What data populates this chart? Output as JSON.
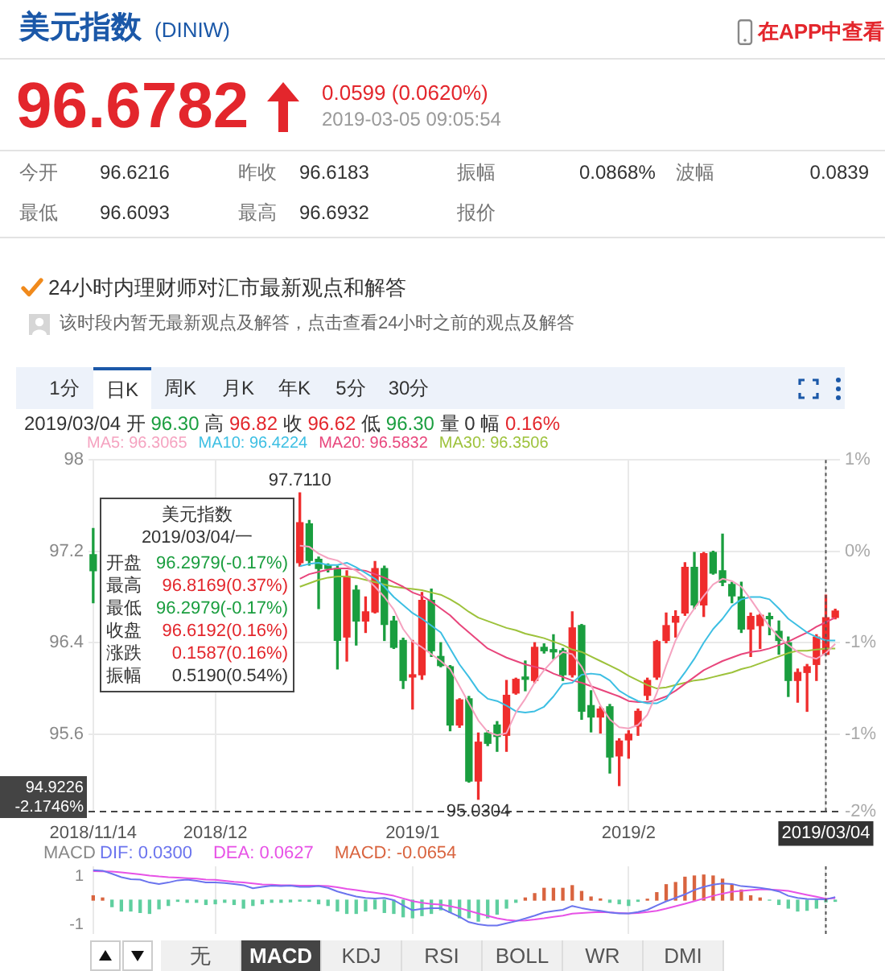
{
  "chart_data": [
    {
      "type": "other",
      "title": "美元指数",
      "subtitle": "(DINIW)",
      "annotations": [
        "96.6782",
        "0.0599 (0.0620%)",
        "2019-03-05 09:05:54",
        "在APP中查看",
        "今开",
        "96.6216",
        "昨收",
        "96.6183",
        "振幅",
        "0.0868%",
        "波幅",
        "0.0839",
        "最低",
        "96.6093",
        "最高",
        "96.6932",
        "报价",
        "24小时内理财师对汇市最新观点和解答",
        "该时段内暂无最新观点及解答，点击查看24小时之前的观点及解答"
      ]
    },
    {
      "type": "candlestick",
      "categories": [
        "2018/11/14",
        null,
        null,
        null,
        null,
        null,
        null,
        null,
        null,
        null,
        null,
        null,
        null,
        "2018/12",
        null,
        null,
        null,
        null,
        null,
        null,
        null,
        null,
        null,
        null,
        null,
        null,
        null,
        null,
        null,
        null,
        null,
        null,
        null,
        null,
        "2019/1",
        null,
        null,
        null,
        null,
        null,
        null,
        null,
        null,
        null,
        null,
        null,
        null,
        null,
        null,
        null,
        null,
        null,
        null,
        null,
        null,
        null,
        null,
        "2019/2",
        null,
        null,
        null,
        null,
        null,
        null,
        null,
        null,
        null,
        null,
        null,
        null,
        null,
        null,
        null,
        null,
        null,
        null,
        null,
        null,
        "2019/03/04",
        null
      ],
      "ohlc": [
        [
          97.17,
          97.4,
          96.75,
          97.03
        ],
        null,
        null,
        null,
        null,
        null,
        null,
        null,
        null,
        null,
        null,
        null,
        null,
        null,
        null,
        null,
        null,
        null,
        null,
        null,
        null,
        null,
        [
          97.1,
          97.711,
          97.07,
          97.45
        ],
        [
          97.44,
          97.47,
          97.08,
          97.12
        ],
        [
          97.13,
          97.15,
          96.7,
          97.05
        ],
        [
          97.08,
          97.09,
          97.02,
          97.05
        ],
        [
          97.05,
          97.07,
          96.17,
          96.42
        ],
        [
          96.45,
          97.03,
          96.24,
          96.98
        ],
        [
          96.86,
          96.9,
          96.38,
          96.59
        ],
        [
          96.59,
          96.8,
          96.49,
          96.67
        ],
        [
          96.67,
          97.11,
          96.66,
          97.05
        ],
        [
          97.05,
          97.07,
          96.42,
          96.56
        ],
        [
          96.59,
          96.63,
          96.35,
          96.36
        ],
        [
          96.42,
          96.44,
          96.0,
          96.07
        ],
        [
          96.1,
          96.42,
          95.82,
          96.12
        ],
        [
          96.12,
          96.84,
          96.08,
          96.77
        ],
        [
          96.77,
          96.87,
          96.28,
          96.33
        ],
        [
          96.28,
          96.4,
          96.19,
          96.2
        ],
        [
          96.19,
          96.2,
          95.63,
          95.68
        ],
        [
          95.68,
          95.91,
          95.66,
          95.9
        ],
        [
          95.91,
          95.93,
          95.18,
          95.19
        ],
        [
          95.19,
          95.61,
          95.0304,
          95.53
        ],
        [
          95.61,
          95.63,
          95.5,
          95.52
        ],
        [
          95.68,
          95.71,
          95.45,
          95.58
        ],
        [
          95.59,
          96.07,
          95.45,
          95.94
        ],
        [
          95.96,
          96.09,
          95.95,
          96.08
        ],
        [
          96.1,
          96.24,
          95.98,
          96.08
        ],
        [
          96.07,
          96.4,
          96.05,
          96.36
        ],
        [
          96.36,
          96.39,
          96.31,
          96.33
        ],
        [
          96.34,
          96.47,
          96.26,
          96.32
        ],
        [
          96.33,
          96.35,
          96.07,
          96.12
        ],
        [
          96.12,
          96.67,
          96.1,
          96.53
        ],
        [
          96.55,
          96.56,
          95.73,
          95.8
        ],
        [
          95.85,
          95.98,
          95.62,
          95.75
        ],
        [
          95.75,
          95.84,
          95.61,
          95.82
        ],
        [
          95.84,
          95.86,
          95.26,
          95.4
        ],
        [
          95.41,
          95.56,
          95.15,
          95.54
        ],
        [
          95.55,
          95.63,
          95.39,
          95.6
        ],
        [
          95.67,
          95.82,
          95.59,
          95.8
        ],
        [
          95.94,
          96.09,
          95.9,
          96.07
        ],
        [
          96.1,
          96.42,
          96.08,
          96.41
        ],
        [
          96.42,
          96.66,
          96.4,
          96.55
        ],
        [
          96.58,
          96.68,
          96.45,
          96.63
        ],
        [
          96.66,
          97.1,
          96.64,
          97.06
        ],
        [
          97.06,
          97.19,
          96.7,
          96.73
        ],
        [
          96.73,
          97.19,
          96.63,
          97.18
        ],
        [
          97.19,
          97.2,
          97.0,
          97.01
        ],
        [
          97.03,
          97.35,
          96.9,
          96.93
        ],
        [
          96.91,
          96.93,
          96.75,
          96.81
        ],
        [
          96.8,
          96.93,
          96.49,
          96.52
        ],
        [
          96.52,
          96.66,
          96.28,
          96.63
        ],
        [
          96.55,
          96.65,
          96.35,
          96.64
        ],
        [
          96.63,
          96.66,
          96.47,
          96.61
        ],
        [
          96.5,
          96.59,
          96.3,
          96.42
        ],
        [
          96.4,
          96.45,
          95.93,
          96.07
        ],
        [
          96.07,
          96.17,
          95.88,
          96.14
        ],
        [
          96.14,
          96.21,
          95.8,
          96.19
        ],
        [
          96.21,
          96.47,
          96.07,
          96.45
        ],
        [
          96.2979,
          96.8169,
          96.2979,
          96.6192
        ],
        [
          96.6216,
          96.6932,
          96.6093,
          96.6782
        ]
      ],
      "colors": [
        "#1a9e3f",
        null,
        null,
        null,
        null,
        null,
        null,
        null,
        null,
        null,
        null,
        null,
        null,
        null,
        null,
        null,
        null,
        null,
        null,
        null,
        null,
        null,
        "#ef2d2d",
        "#1a9e3f",
        "#1a9e3f",
        "#1a9e3f",
        "#1a9e3f",
        "#ef2d2d",
        "#1a9e3f",
        "#ef2d2d",
        "#ef2d2d",
        "#1a9e3f",
        "#1a9e3f",
        "#1a9e3f",
        "#ef2d2d",
        "#ef2d2d",
        "#1a9e3f",
        "#1a9e3f",
        "#1a9e3f",
        "#ef2d2d",
        "#1a9e3f",
        "#ef2d2d",
        "#1a9e3f",
        "#1a9e3f",
        "#ef2d2d",
        "#ef2d2d",
        "#1a9e3f",
        "#ef2d2d",
        "#1a9e3f",
        "#1a9e3f",
        "#1a9e3f",
        "#ef2d2d",
        "#1a9e3f",
        "#1a9e3f",
        "#ef2d2d",
        "#1a9e3f",
        "#ef2d2d",
        "#ef2d2d",
        "#ef2d2d",
        "#ef2d2d",
        "#ef2d2d",
        "#ef2d2d",
        "#ef2d2d",
        "#ef2d2d",
        "#1a9e3f",
        "#ef2d2d",
        "#1a9e3f",
        "#1a9e3f",
        "#1a9e3f",
        "#1a9e3f",
        "#ef2d2d",
        "#ef2d2d",
        "#1a9e3f",
        "#1a9e3f",
        "#1a9e3f",
        "#ef2d2d",
        "#ef2d2d",
        "#ef2d2d",
        "#ef2d2d",
        "#ef2d2d"
      ],
      "series": [
        {
          "name": "MA5: 96.3065",
          "type": "line",
          "color": "#f5a3c0",
          "values": [
            null,
            null,
            null,
            null,
            null,
            null,
            null,
            null,
            null,
            null,
            null,
            null,
            null,
            null,
            null,
            null,
            null,
            null,
            null,
            null,
            null,
            null,
            97.25,
            97.24,
            97.18,
            97.14,
            97.12,
            97.07,
            97.03,
            96.97,
            96.89,
            96.8,
            96.69,
            96.52,
            96.41,
            96.36,
            96.3,
            96.24,
            96.17,
            96.02,
            95.87,
            95.72,
            95.62,
            95.59,
            95.61,
            95.79,
            95.91,
            96.05,
            96.16,
            96.25,
            96.32,
            96.3,
            96.19,
            96.03,
            95.85,
            95.73,
            95.66,
            95.65,
            95.68,
            95.77,
            95.96,
            96.2,
            96.42,
            96.58,
            96.7,
            96.81,
            96.91,
            96.96,
            96.94,
            96.89,
            96.78,
            96.66,
            96.54,
            96.45,
            96.38,
            96.32,
            96.28,
            96.26,
            96.31,
            96.39
          ]
        },
        {
          "name": "MA10: 96.4224",
          "type": "line",
          "color": "#3dbfe3",
          "values": [
            null,
            null,
            null,
            null,
            null,
            null,
            null,
            null,
            null,
            null,
            null,
            null,
            null,
            null,
            null,
            null,
            null,
            null,
            null,
            null,
            null,
            null,
            97.07,
            97.09,
            97.1,
            97.08,
            97.08,
            97.1,
            97.06,
            97.01,
            96.96,
            96.89,
            96.8,
            96.73,
            96.66,
            96.61,
            96.55,
            96.49,
            96.35,
            96.21,
            96.1,
            95.98,
            95.91,
            95.89,
            95.85,
            95.8,
            95.79,
            95.8,
            95.84,
            95.93,
            96.04,
            96.05,
            96.12,
            96.13,
            96.12,
            96.07,
            95.98,
            95.93,
            95.89,
            95.87,
            95.87,
            95.91,
            96.03,
            96.14,
            96.26,
            96.4,
            96.52,
            96.61,
            96.72,
            96.78,
            96.8,
            96.8,
            96.78,
            96.7,
            96.61,
            96.55,
            96.49,
            96.45,
            96.42,
            96.42
          ]
        },
        {
          "name": "MA20: 96.5832",
          "type": "line",
          "color": "#e8467c",
          "values": [
            null,
            null,
            null,
            null,
            null,
            null,
            null,
            null,
            null,
            null,
            null,
            null,
            null,
            null,
            null,
            null,
            null,
            null,
            null,
            null,
            null,
            null,
            96.96,
            97.0,
            97.02,
            97.04,
            97.05,
            97.05,
            97.04,
            97.03,
            97.0,
            96.97,
            96.93,
            96.89,
            96.84,
            96.81,
            96.76,
            96.7,
            96.64,
            96.56,
            96.49,
            96.42,
            96.35,
            96.31,
            96.27,
            96.24,
            96.21,
            96.19,
            96.17,
            96.13,
            96.1,
            96.07,
            96.05,
            96.02,
            95.99,
            95.96,
            95.93,
            95.89,
            95.88,
            95.88,
            95.9,
            95.93,
            95.98,
            96.04,
            96.1,
            96.16,
            96.2,
            96.24,
            96.27,
            96.3,
            96.32,
            96.33,
            96.35,
            96.38,
            96.41,
            96.45,
            96.49,
            96.54,
            96.58,
            96.62
          ]
        },
        {
          "name": "MA30: 96.3506",
          "type": "line",
          "color": "#9dc23b",
          "values": [
            null,
            null,
            null,
            null,
            null,
            null,
            null,
            null,
            null,
            null,
            null,
            null,
            null,
            null,
            null,
            null,
            null,
            null,
            null,
            null,
            null,
            null,
            96.89,
            96.92,
            96.95,
            96.97,
            96.98,
            96.98,
            96.97,
            96.95,
            96.93,
            96.91,
            96.89,
            96.88,
            96.87,
            96.86,
            96.84,
            96.82,
            96.78,
            96.73,
            96.67,
            96.62,
            96.59,
            96.56,
            96.53,
            96.51,
            96.48,
            96.46,
            96.44,
            96.41,
            96.38,
            96.34,
            96.32,
            96.28,
            96.24,
            96.2,
            96.16,
            96.11,
            96.07,
            96.03,
            96.0,
            96.01,
            96.03,
            96.05,
            96.07,
            96.08,
            96.1,
            96.12,
            96.14,
            96.17,
            96.19,
            96.22,
            96.25,
            96.28,
            96.31,
            96.33,
            96.33,
            96.34,
            96.35,
            96.35
          ]
        }
      ],
      "ylim": [
        94.9226,
        98
      ],
      "yticks": [
        95.6,
        96.4,
        97.2,
        98
      ],
      "y2lim": [
        -2.1746,
        0.9968
      ],
      "y2ticks": [
        {
          "value": -2.1746,
          "label": "-2%"
        },
        {
          "value": -1.4767,
          "label": "-1%"
        },
        {
          "value": -0.6522,
          "label": "-1%"
        },
        {
          "value": 0.1723,
          "label": "0%"
        },
        {
          "value": 0.9968,
          "label": "1%"
        }
      ],
      "grid": true,
      "legend": "top",
      "marker": "none",
      "ref_lines": [
        {
          "axis": "y",
          "value": 94.9226,
          "label": "94.9226 -2.1746%",
          "line_style": "dashed",
          "color": "#444444"
        },
        {
          "axis": "x",
          "value": "2019/03/04",
          "line_style": "dotted",
          "color": "#555555"
        }
      ],
      "annotations": [
        "1分",
        "日K",
        "周K",
        "月K",
        "年K",
        "5分",
        "30分",
        "2019/03/04 开 96.30 高 96.82 收 96.62 低 96.30 量 0 幅 0.16%",
        "美元指数",
        "2019/03/04/一",
        "开盘 96.2979(-0.17%)",
        "最高 96.8169(0.37%)",
        "最低 96.2979(-0.17%)",
        "收盘 96.6192(0.16%)",
        "涨跌 0.1587(0.16%)",
        "振幅 0.5190(0.54%)",
        {
          "text": "97.7110",
          "y": 97.711
        },
        {
          "text": "95.0304",
          "y": 95.0304
        }
      ]
    },
    {
      "type": "bar",
      "title": "MACD",
      "categories": [
        "2018/11/14",
        null,
        null,
        null,
        null,
        null,
        null,
        null,
        null,
        null,
        null,
        null,
        null,
        "2018/12",
        null,
        null,
        null,
        null,
        null,
        null,
        null,
        null,
        null,
        null,
        null,
        null,
        null,
        null,
        null,
        null,
        null,
        null,
        null,
        null,
        "2019/1",
        null,
        null,
        null,
        null,
        null,
        null,
        null,
        null,
        null,
        null,
        null,
        null,
        null,
        null,
        null,
        null,
        null,
        null,
        null,
        null,
        null,
        null,
        "2019/2",
        null,
        null,
        null,
        null,
        null,
        null,
        null,
        null,
        null,
        null,
        null,
        null,
        null,
        null,
        null,
        null,
        null,
        null,
        null,
        null,
        "2019/03/04",
        null
      ],
      "series": [
        {
          "name": "DIF: 0.0300",
          "type": "line",
          "color": "#6b74ee",
          "values": [
            1.24,
            1.22,
            1.09,
            0.95,
            0.87,
            0.85,
            0.73,
            0.67,
            0.73,
            0.82,
            0.85,
            0.8,
            0.73,
            0.73,
            0.71,
            0.67,
            0.62,
            0.49,
            0.55,
            0.6,
            0.58,
            0.6,
            0.55,
            0.55,
            0.58,
            0.51,
            0.36,
            0.25,
            0.15,
            0.09,
            0.07,
            0.09,
            0.0,
            -0.22,
            -0.42,
            -0.36,
            -0.33,
            -0.33,
            -0.51,
            -0.69,
            -0.91,
            -1.0,
            -1.05,
            -1.05,
            -0.96,
            -0.87,
            -0.76,
            -0.64,
            -0.51,
            -0.45,
            -0.4,
            -0.24,
            -0.33,
            -0.4,
            -0.44,
            -0.51,
            -0.55,
            -0.55,
            -0.49,
            -0.4,
            -0.22,
            -0.05,
            0.09,
            0.24,
            0.42,
            0.55,
            0.64,
            0.69,
            0.67,
            0.58,
            0.55,
            0.51,
            0.45,
            0.36,
            0.18,
            0.09,
            0.05,
            0.04,
            0.03,
            0.13
          ]
        },
        {
          "name": "DEA: 0.0627",
          "type": "line",
          "color": "#e752e6",
          "values": [
            1.2,
            1.19,
            1.18,
            1.15,
            1.11,
            1.07,
            1.02,
            0.98,
            0.95,
            0.93,
            0.91,
            0.89,
            0.85,
            0.84,
            0.8,
            0.76,
            0.73,
            0.69,
            0.65,
            0.64,
            0.62,
            0.62,
            0.6,
            0.6,
            0.6,
            0.58,
            0.53,
            0.47,
            0.42,
            0.36,
            0.31,
            0.25,
            0.18,
            0.07,
            -0.04,
            -0.11,
            -0.16,
            -0.18,
            -0.25,
            -0.33,
            -0.44,
            -0.55,
            -0.65,
            -0.75,
            -0.82,
            -0.85,
            -0.84,
            -0.8,
            -0.75,
            -0.69,
            -0.64,
            -0.56,
            -0.53,
            -0.51,
            -0.49,
            -0.51,
            -0.53,
            -0.55,
            -0.53,
            -0.49,
            -0.44,
            -0.35,
            -0.25,
            -0.15,
            -0.04,
            0.07,
            0.18,
            0.27,
            0.35,
            0.38,
            0.42,
            0.44,
            0.44,
            0.42,
            0.38,
            0.3,
            0.22,
            0.14,
            0.06,
            0.08
          ]
        },
        {
          "name": "MACD: -0.0654",
          "color": "#d9643f",
          "values": [
            0.18,
            0.09,
            -0.27,
            -0.45,
            -0.45,
            -0.51,
            -0.55,
            -0.36,
            -0.22,
            -0.05,
            -0.09,
            -0.09,
            -0.18,
            -0.15,
            -0.09,
            -0.18,
            -0.33,
            -0.22,
            -0.15,
            -0.09,
            -0.09,
            -0.07,
            -0.04,
            -0.05,
            -0.15,
            -0.22,
            -0.45,
            -0.55,
            -0.55,
            -0.45,
            -0.36,
            -0.51,
            -0.55,
            -0.69,
            -0.73,
            -0.64,
            -0.55,
            -0.4,
            -0.51,
            -0.73,
            -0.73,
            -0.87,
            -0.73,
            -0.58,
            -0.33,
            -0.09,
            0.09,
            0.27,
            0.49,
            0.49,
            0.49,
            0.6,
            0.36,
            0.13,
            0.05,
            -0.09,
            -0.15,
            -0.22,
            -0.05,
            0.04,
            0.31,
            0.64,
            0.73,
            0.95,
            1.0,
            1.04,
            1.0,
            0.87,
            0.64,
            0.42,
            0.18,
            0.09,
            0,
            -0.18,
            -0.33,
            -0.45,
            -0.42,
            -0.33,
            -0.07,
            -0.05
          ],
          "colors": [
            "#d9643f",
            "#d9643f",
            "#5fcf9f",
            "#5fcf9f",
            "#5fcf9f",
            "#5fcf9f",
            "#5fcf9f",
            "#5fcf9f",
            "#5fcf9f",
            "#5fcf9f",
            "#5fcf9f",
            "#5fcf9f",
            "#5fcf9f",
            "#5fcf9f",
            "#5fcf9f",
            "#5fcf9f",
            "#5fcf9f",
            "#5fcf9f",
            "#5fcf9f",
            "#5fcf9f",
            "#5fcf9f",
            "#5fcf9f",
            "#5fcf9f",
            "#5fcf9f",
            "#5fcf9f",
            "#5fcf9f",
            "#5fcf9f",
            "#5fcf9f",
            "#5fcf9f",
            "#5fcf9f",
            "#5fcf9f",
            "#5fcf9f",
            "#5fcf9f",
            "#5fcf9f",
            "#5fcf9f",
            "#5fcf9f",
            "#5fcf9f",
            "#5fcf9f",
            "#5fcf9f",
            "#5fcf9f",
            "#5fcf9f",
            "#5fcf9f",
            "#5fcf9f",
            "#5fcf9f",
            "#5fcf9f",
            "#5fcf9f",
            "#d9643f",
            "#d9643f",
            "#d9643f",
            "#d9643f",
            "#d9643f",
            "#d9643f",
            "#d9643f",
            "#d9643f",
            "#d9643f",
            "#5fcf9f",
            "#5fcf9f",
            "#5fcf9f",
            "#5fcf9f",
            "#d9643f",
            "#d9643f",
            "#d9643f",
            "#d9643f",
            "#d9643f",
            "#d9643f",
            "#d9643f",
            "#d9643f",
            "#d9643f",
            "#d9643f",
            "#d9643f",
            "#d9643f",
            "#d9643f",
            "#5fcf9f",
            "#5fcf9f",
            "#5fcf9f",
            "#5fcf9f",
            "#5fcf9f",
            "#5fcf9f",
            "#5fcf9f",
            "#5fcf9f"
          ]
        }
      ],
      "ylim": [
        -1.4,
        1.4
      ],
      "yticks": [
        -1,
        1
      ],
      "grid": "x",
      "legend": "top",
      "marker": "none",
      "tick_labels": "y",
      "ref_lines": [
        {
          "axis": "x",
          "value": "2019/03/04",
          "line_style": "dotted",
          "color": "#555555"
        }
      ],
      "annotations": [
        "无",
        "MACD",
        "KDJ",
        "RSI",
        "BOLL",
        "WR",
        "DMI"
      ]
    }
  ]
}
